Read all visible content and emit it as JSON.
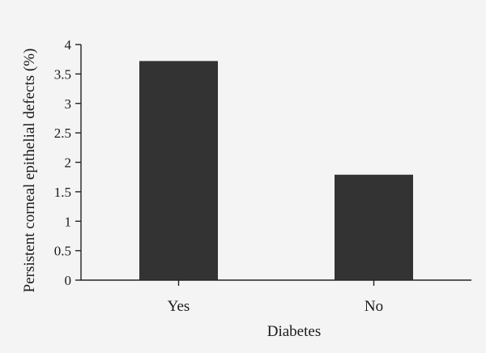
{
  "chart_data": {
    "type": "bar",
    "categories": [
      "Yes",
      "No"
    ],
    "values": [
      3.72,
      1.79
    ],
    "xlabel": "Diabetes",
    "ylabel": "Persistent corneal epithelial defects (%)",
    "ylim": [
      0,
      4
    ],
    "yticks": [
      "0",
      "0.5",
      "1",
      "1.5",
      "2",
      "2.5",
      "3",
      "3.5",
      "4"
    ],
    "grid": false,
    "bar_color": "#333333",
    "background_color": "#f4f4f4"
  }
}
